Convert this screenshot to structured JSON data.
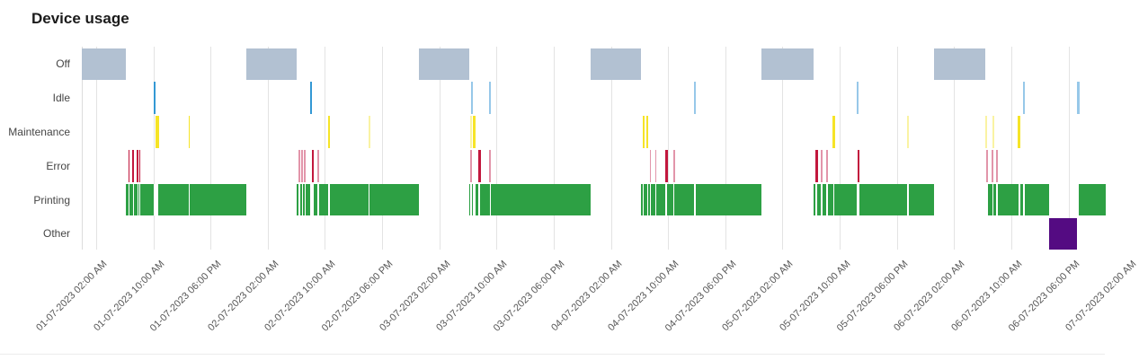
{
  "header": {
    "title": "Device usage"
  },
  "chart_data": {
    "type": "timeline",
    "title": "Device usage",
    "x_origin": "01-07-2023 00:00",
    "time_unit": "hours since 01-07-2023 00:00",
    "x_range_hours": [
      0,
      143.2
    ],
    "first_tick_hour": 2,
    "tick_interval_hours": 8,
    "x_tick_labels": [
      "01-07-2023 02:00 AM",
      "01-07-2023 10:00 AM",
      "01-07-2023 06:00 PM",
      "02-07-2023 02:00 AM",
      "02-07-2023 10:00 AM",
      "02-07-2023 06:00 PM",
      "03-07-2023 02:00 AM",
      "03-07-2023 10:00 AM",
      "03-07-2023 06:00 PM",
      "04-07-2023 02:00 AM",
      "04-07-2023 10:00 AM",
      "04-07-2023 06:00 PM",
      "05-07-2023 02:00 AM",
      "05-07-2023 10:00 AM",
      "05-07-2023 06:00 PM",
      "06-07-2023 02:00 AM",
      "06-07-2023 10:00 AM",
      "06-07-2023 06:00 PM",
      "07-07-2023 02:00 AM"
    ],
    "rows": [
      "Off",
      "Idle",
      "Maintenance",
      "Error",
      "Printing",
      "Other"
    ],
    "grid": true,
    "legend": "none",
    "colors": {
      "off": "#b2c1d2",
      "idle": "#3398d4",
      "idle_pale": "#97c8e9",
      "maintenance": "#f6e427",
      "maintenance_pale": "#faf3a3",
      "error": "#c2173d",
      "error_pale": "#e295aa",
      "printing": "#2da044",
      "other": "#540b82",
      "grid_line": "#e3e3e3",
      "axis_line": "#dcdcdc",
      "title_text": "#1b1b1b",
      "row_label_text": "#454545",
      "tick_label_text": "#575757",
      "divider": "#ececec",
      "background": "#ffffff"
    },
    "series": [
      {
        "name": "Off",
        "row": 0,
        "color_key": "off",
        "segments": [
          {
            "s": 0,
            "e": 6.2
          },
          {
            "s": 23.0,
            "e": 30.1
          },
          {
            "s": 47.2,
            "e": 54.2
          },
          {
            "s": 71.2,
            "e": 78.2
          },
          {
            "s": 95.1,
            "e": 102.3
          },
          {
            "s": 119.2,
            "e": 126.3
          }
        ]
      },
      {
        "name": "Idle",
        "row": 1,
        "color_key": "idle",
        "segments": [
          {
            "s": 10.05,
            "e": 10.3
          },
          {
            "s": 31.9,
            "e": 32.15
          },
          {
            "s": 54.4,
            "e": 54.65,
            "pale": true
          },
          {
            "s": 57.0,
            "e": 57.25,
            "pale": true
          },
          {
            "s": 85.6,
            "e": 85.9,
            "pale": true
          },
          {
            "s": 108.35,
            "e": 108.6,
            "pale": true
          },
          {
            "s": 131.6,
            "e": 131.85,
            "pale": true
          },
          {
            "s": 139.15,
            "e": 139.5,
            "pale": true
          }
        ]
      },
      {
        "name": "Maintenance",
        "row": 2,
        "color_key": "maintenance",
        "segments": [
          {
            "s": 10.3,
            "e": 10.75
          },
          {
            "s": 14.9,
            "e": 15.15
          },
          {
            "s": 34.4,
            "e": 34.7
          },
          {
            "s": 40.05,
            "e": 40.3,
            "pale": true
          },
          {
            "s": 54.3,
            "e": 54.5,
            "pale": true
          },
          {
            "s": 54.7,
            "e": 55.1
          },
          {
            "s": 78.4,
            "e": 78.65
          },
          {
            "s": 79.0,
            "e": 79.25
          },
          {
            "s": 105.0,
            "e": 105.3
          },
          {
            "s": 115.4,
            "e": 115.65,
            "pale": true
          },
          {
            "s": 126.35,
            "e": 126.55,
            "pale": true
          },
          {
            "s": 127.3,
            "e": 127.55,
            "pale": true
          },
          {
            "s": 130.9,
            "e": 131.3
          }
        ]
      },
      {
        "name": "Error",
        "row": 3,
        "color_key": "error",
        "segments": [
          {
            "s": 6.5,
            "e": 6.65
          },
          {
            "s": 7.1,
            "e": 7.25
          },
          {
            "s": 7.7,
            "e": 7.85
          },
          {
            "s": 8.0,
            "e": 8.15
          },
          {
            "s": 30.3,
            "e": 30.45,
            "pale": true
          },
          {
            "s": 30.7,
            "e": 30.85,
            "pale": true
          },
          {
            "s": 31.1,
            "e": 31.25,
            "pale": true
          },
          {
            "s": 32.15,
            "e": 32.45
          },
          {
            "s": 32.95,
            "e": 33.1,
            "pale": true
          },
          {
            "s": 54.3,
            "e": 54.45,
            "pale": true
          },
          {
            "s": 55.4,
            "e": 55.85
          },
          {
            "s": 57.0,
            "e": 57.15,
            "pale": true
          },
          {
            "s": 79.4,
            "e": 79.55,
            "pale": true
          },
          {
            "s": 80.15,
            "e": 80.3,
            "pale": true
          },
          {
            "s": 81.55,
            "e": 81.95
          },
          {
            "s": 82.7,
            "e": 82.85,
            "pale": true
          },
          {
            "s": 102.6,
            "e": 102.95
          },
          {
            "s": 103.35,
            "e": 103.5,
            "pale": true
          },
          {
            "s": 104.1,
            "e": 104.25,
            "pale": true
          },
          {
            "s": 108.55,
            "e": 108.7
          },
          {
            "s": 126.5,
            "e": 126.7,
            "pale": true
          },
          {
            "s": 127.25,
            "e": 127.45,
            "pale": true
          },
          {
            "s": 127.85,
            "e": 128.1,
            "pale": true
          }
        ]
      },
      {
        "name": "Printing",
        "row": 4,
        "color_key": "printing",
        "segments": [
          {
            "s": 6.2,
            "e": 23.0
          },
          {
            "s": 30.1,
            "e": 47.2
          },
          {
            "s": 54.2,
            "e": 71.2
          },
          {
            "s": 78.2,
            "e": 95.1
          },
          {
            "s": 102.3,
            "e": 119.2
          },
          {
            "s": 126.3,
            "e": 135.3
          },
          {
            "s": 139.45,
            "e": 143.2
          }
        ]
      },
      {
        "name": "Other",
        "row": 5,
        "color_key": "other",
        "segments": [
          {
            "s": 135.3,
            "e": 139.15
          }
        ]
      }
    ]
  }
}
